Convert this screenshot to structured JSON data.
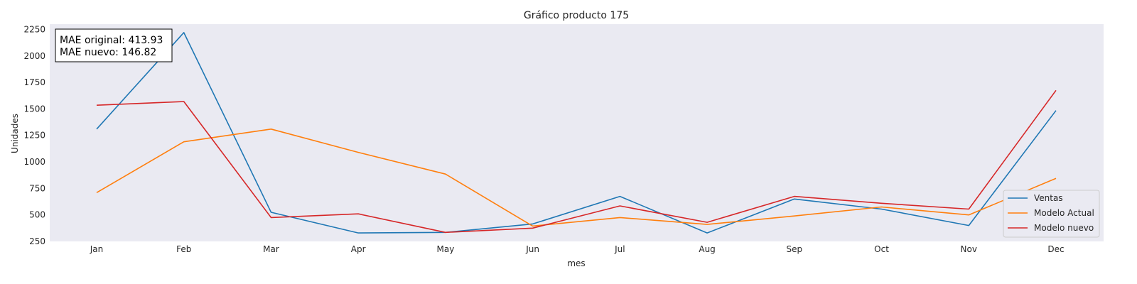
{
  "chart_data": {
    "type": "line",
    "title": "Gráfico producto 175",
    "xlabel": "mes",
    "ylabel": "Unidades",
    "categories": [
      "Jan",
      "Feb",
      "Mar",
      "Apr",
      "May",
      "Jun",
      "Jul",
      "Aug",
      "Sep",
      "Oct",
      "Nov",
      "Dec"
    ],
    "ylim": [
      250,
      2300
    ],
    "yticks": [
      250,
      500,
      750,
      1000,
      1250,
      1500,
      1750,
      2000,
      2250
    ],
    "grid": false,
    "background": "#eaeaf2",
    "legend_position": "bottom-right",
    "series": [
      {
        "name": "Ventas",
        "color": "#1f77b4",
        "values": [
          1310,
          2220,
          525,
          330,
          335,
          415,
          675,
          330,
          650,
          555,
          400,
          1485
        ]
      },
      {
        "name": "Modelo Actual",
        "color": "#ff7f0e",
        "values": [
          710,
          1190,
          1310,
          1090,
          885,
          395,
          475,
          410,
          490,
          575,
          500,
          845
        ]
      },
      {
        "name": "Modelo nuevo",
        "color": "#d62728",
        "values": [
          1535,
          1570,
          475,
          510,
          335,
          375,
          585,
          430,
          675,
          610,
          555,
          1675
        ]
      }
    ],
    "annotation": {
      "line1": "MAE original: 413.93",
      "line2": "MAE nuevo: 146.82"
    }
  }
}
